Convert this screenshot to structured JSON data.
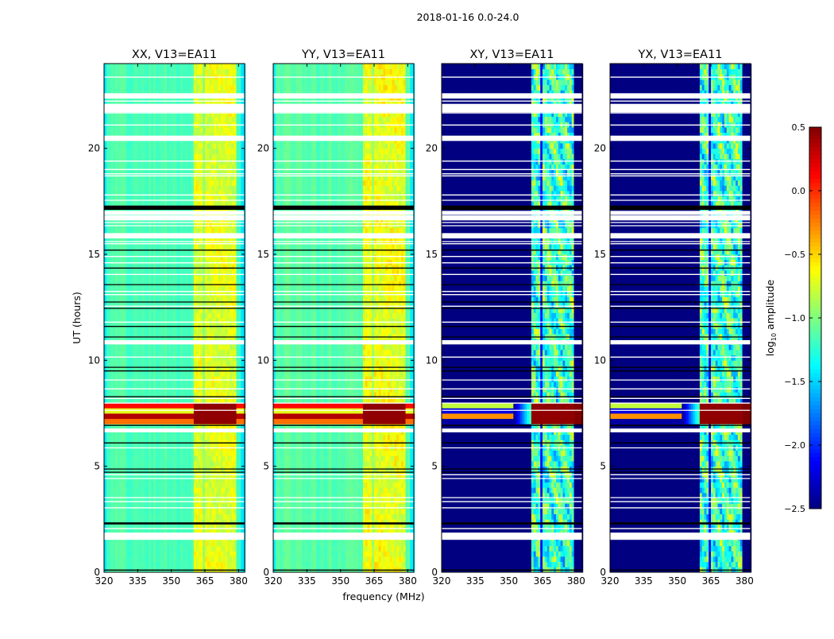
{
  "chart_data": {
    "type": "heatmap",
    "suptitle": "2018-01-16 0.0-24.0",
    "xlabel": "frequency (MHz)",
    "ylabel": "UT (hours)",
    "xlim": [
      320,
      382.7
    ],
    "ylim": [
      0,
      24
    ],
    "xticks": [
      "320",
      "335",
      "350",
      "365",
      "380"
    ],
    "xtick_values": [
      320,
      335,
      350,
      365,
      380
    ],
    "yticks": [
      "0",
      "5",
      "10",
      "15",
      "20"
    ],
    "ytick_values": [
      0,
      5,
      10,
      15,
      20
    ],
    "colorbar": {
      "label": "log10 amplitude",
      "label_main": "log",
      "label_sub": "10",
      "label_rest": " amplitude",
      "range": [
        -2.5,
        0.5
      ],
      "ticks": [
        "0.5",
        "0.0",
        "−0.5",
        "−1.0",
        "−1.5",
        "−2.0",
        "−2.5"
      ],
      "tick_values": [
        0.5,
        0.0,
        -0.5,
        -1.0,
        -1.5,
        -2.0,
        -2.5
      ],
      "colormap": "jet"
    },
    "band_blocks_mhz": [
      [
        360,
        364.3
      ],
      [
        364.8,
        368.8
      ],
      [
        369.3,
        373.7
      ],
      [
        374.2,
        378.9
      ]
    ],
    "rfi_event_hours": [
      6.95,
      7.98
    ],
    "rfi_band_level": 0.45,
    "flagged_hours": [
      [
        22.35,
        22.6
      ],
      [
        21.7,
        22.1
      ],
      [
        20.35,
        20.6
      ],
      [
        16.87,
        17.05
      ],
      [
        16.6,
        16.85
      ],
      [
        15.75,
        16.0
      ],
      [
        10.75,
        10.95
      ],
      [
        6.6,
        6.78
      ],
      [
        1.53,
        1.87
      ]
    ],
    "dropout_hours_black": [
      [
        17.1,
        17.3
      ]
    ],
    "black_lines_hours": [
      15.2,
      14.35,
      13.57,
      12.75,
      12.45,
      11.6,
      11.1,
      9.67,
      9.5,
      8.28,
      6.93,
      6.1,
      4.87,
      4.72,
      2.33,
      2.28,
      0.1
    ],
    "white_lines_hours": [
      23.36,
      22.23,
      21.67,
      21.1,
      19.4,
      19.0,
      18.8,
      18.7,
      17.8,
      17.55,
      16.5,
      16.35,
      15.6,
      15.5,
      14.9,
      14.6,
      14.05,
      13.25,
      13.1,
      12.55,
      11.8,
      10.15,
      9.07,
      8.65,
      8.2,
      7.98,
      7.64,
      5.87,
      4.6,
      4.42,
      3.52,
      3.33,
      3.04,
      2.06
    ],
    "panels": [
      {
        "title": "XX, V13=EA11",
        "base_level": -1.15,
        "edge_level": -1.45,
        "band_level": -0.72,
        "band_gap_level": -0.95,
        "band_spread": 0.12
      },
      {
        "title": "YY, V13=EA11",
        "base_level": -1.12,
        "edge_level": -1.42,
        "band_level": -0.68,
        "band_gap_level": -0.92,
        "band_spread": 0.14
      },
      {
        "title": "XY, V13=EA11",
        "base_level": -2.5,
        "edge_level": -2.5,
        "band_level": -1.2,
        "band_gap_level": -2.1,
        "band_spread": 0.35
      },
      {
        "title": "YX, V13=EA11",
        "base_level": -2.5,
        "edge_level": -2.5,
        "band_level": -1.2,
        "band_gap_level": -2.1,
        "band_spread": 0.35
      }
    ]
  }
}
